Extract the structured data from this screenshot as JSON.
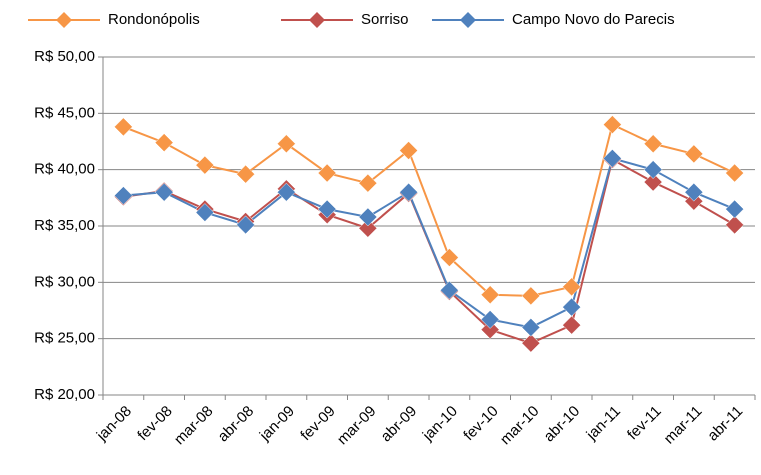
{
  "chart_data": {
    "type": "line",
    "categories": [
      "jan-08",
      "fev-08",
      "mar-08",
      "abr-08",
      "jan-09",
      "fev-09",
      "mar-09",
      "abr-09",
      "jan-10",
      "fev-10",
      "mar-10",
      "abr-10",
      "jan-11",
      "fev-11",
      "mar-11",
      "abr-11"
    ],
    "series": [
      {
        "name": "Rondonópolis",
        "color": "#f79646",
        "values": [
          43.8,
          42.4,
          40.4,
          39.6,
          42.3,
          39.7,
          38.8,
          41.7,
          32.2,
          28.9,
          28.8,
          29.6,
          44.0,
          42.3,
          41.4,
          39.7
        ]
      },
      {
        "name": "Sorriso",
        "color": "#c0504d",
        "values": [
          37.6,
          38.1,
          36.5,
          35.4,
          38.3,
          36.0,
          34.8,
          37.9,
          29.2,
          25.8,
          24.6,
          26.2,
          40.9,
          38.9,
          37.2,
          35.1
        ]
      },
      {
        "name": "Campo Novo do Parecis",
        "color": "#4f81bd",
        "values": [
          37.7,
          38.0,
          36.2,
          35.1,
          38.0,
          36.5,
          35.8,
          38.0,
          29.3,
          26.7,
          26.0,
          27.8,
          41.0,
          40.0,
          38.0,
          36.5
        ]
      }
    ],
    "ylim": [
      20,
      50
    ],
    "yticks": [
      {
        "value": 20,
        "label": "R$ 20,00"
      },
      {
        "value": 25,
        "label": "R$ 25,00"
      },
      {
        "value": 30,
        "label": "R$ 30,00"
      },
      {
        "value": 35,
        "label": "R$ 35,00"
      },
      {
        "value": 40,
        "label": "R$ 40,00"
      },
      {
        "value": 45,
        "label": "R$ 45,00"
      },
      {
        "value": 50,
        "label": "R$ 50,00"
      }
    ],
    "grid": true,
    "legend": "top"
  }
}
